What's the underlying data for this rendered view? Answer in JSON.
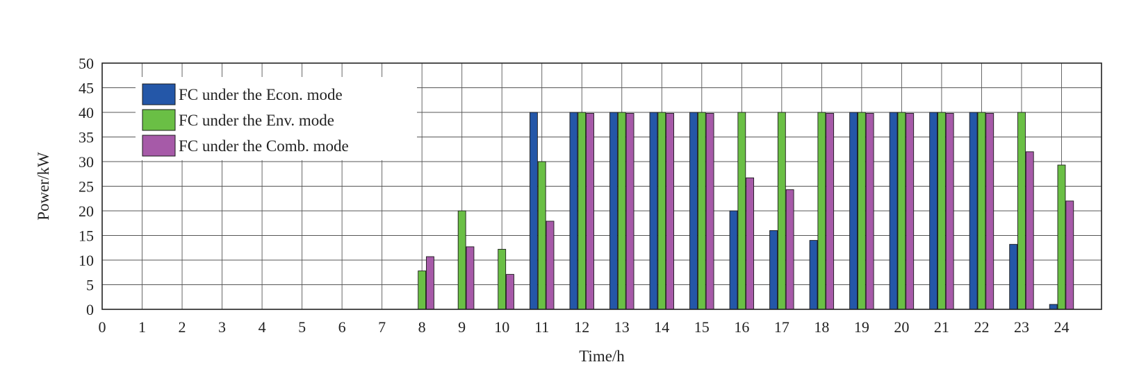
{
  "chart_data": {
    "type": "bar",
    "xlabel": "Time/h",
    "ylabel": "Power/kW",
    "xlim": [
      0,
      25
    ],
    "ylim": [
      0,
      50
    ],
    "x_ticks": [
      "0",
      "1",
      "2",
      "3",
      "4",
      "5",
      "6",
      "7",
      "8",
      "9",
      "10",
      "11",
      "12",
      "13",
      "14",
      "15",
      "16",
      "17",
      "18",
      "19",
      "20",
      "21",
      "22",
      "23",
      "24"
    ],
    "y_ticks": [
      "0",
      "5",
      "10",
      "15",
      "20",
      "25",
      "30",
      "35",
      "40",
      "45",
      "50"
    ],
    "grid": true,
    "legend_position": "top-left",
    "categories": [
      1,
      2,
      3,
      4,
      5,
      6,
      7,
      8,
      9,
      10,
      11,
      12,
      13,
      14,
      15,
      16,
      17,
      18,
      19,
      20,
      21,
      22,
      23,
      24
    ],
    "series": [
      {
        "name": "FC under the Econ. mode",
        "color": "#2457a8",
        "values": [
          0,
          0,
          0,
          0,
          0,
          0,
          0,
          0,
          0,
          0,
          40,
          40,
          40,
          40,
          40,
          20,
          16,
          14,
          40,
          40,
          40,
          40,
          13.2,
          1
        ]
      },
      {
        "name": "FC under the Env. mode",
        "color": "#6abf45",
        "values": [
          0,
          0,
          0,
          0,
          0,
          0,
          0,
          7.8,
          20,
          12.2,
          30,
          40,
          40,
          40,
          40,
          40,
          40,
          40,
          40,
          40,
          40,
          40,
          40,
          29.3
        ]
      },
      {
        "name": "FC under the Comb. mode",
        "color": "#a65aa8",
        "values": [
          0,
          0,
          0,
          0,
          0,
          0,
          0,
          10.7,
          12.7,
          7.1,
          17.9,
          39.8,
          39.8,
          39.8,
          39.8,
          26.7,
          24.3,
          39.8,
          39.8,
          39.8,
          39.8,
          39.8,
          32,
          22
        ]
      }
    ]
  }
}
